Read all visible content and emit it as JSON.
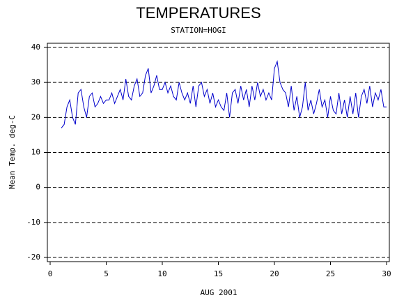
{
  "chart_data": {
    "type": "line",
    "title": "TEMPERATURES",
    "subtitle": "STATION=HOGI",
    "x_label": "AUG 2001",
    "y_label": "Mean Temp. deg-C",
    "x": [
      1,
      1.25,
      1.5,
      1.75,
      2,
      2.25,
      2.5,
      2.75,
      3,
      3.25,
      3.5,
      3.75,
      4,
      4.25,
      4.5,
      4.75,
      5,
      5.25,
      5.5,
      5.75,
      6,
      6.25,
      6.5,
      6.75,
      7,
      7.25,
      7.5,
      7.75,
      8,
      8.25,
      8.5,
      8.75,
      9,
      9.25,
      9.5,
      9.75,
      10,
      10.25,
      10.5,
      10.75,
      11,
      11.25,
      11.5,
      11.75,
      12,
      12.25,
      12.5,
      12.75,
      13,
      13.25,
      13.5,
      13.75,
      14,
      14.25,
      14.5,
      14.75,
      15,
      15.25,
      15.5,
      15.75,
      16,
      16.25,
      16.5,
      16.75,
      17,
      17.25,
      17.5,
      17.75,
      18,
      18.25,
      18.5,
      18.75,
      19,
      19.25,
      19.5,
      19.75,
      20,
      20.25,
      20.5,
      20.75,
      21,
      21.25,
      21.5,
      21.75,
      22,
      22.25,
      22.5,
      22.75,
      23,
      23.25,
      23.5,
      23.75,
      24,
      24.25,
      24.5,
      24.75,
      25,
      25.25,
      25.5,
      25.75,
      26,
      26.25,
      26.5,
      26.75,
      27,
      27.25,
      27.5,
      27.75,
      28,
      28.25,
      28.5,
      28.75,
      29,
      29.25,
      29.5,
      29.75,
      30
    ],
    "series": [
      {
        "color": "#0000cc",
        "values": [
          17,
          18,
          23,
          25,
          20,
          18,
          27,
          28,
          23,
          20,
          26,
          27,
          23,
          24,
          26,
          24,
          25,
          25,
          27,
          24,
          26,
          28,
          25,
          31,
          26,
          25,
          29,
          31,
          26,
          27,
          32,
          34,
          27,
          29,
          32,
          28,
          28,
          30,
          27,
          29,
          26,
          25,
          30,
          27,
          25,
          27,
          24,
          29,
          23,
          29,
          30,
          26,
          28,
          24,
          27,
          23,
          25,
          23,
          22,
          27,
          20,
          27,
          28,
          24,
          29,
          25,
          28,
          23,
          29,
          25,
          30,
          26,
          28,
          25,
          27,
          25,
          34,
          36,
          30,
          28,
          27,
          23,
          29,
          22,
          26,
          20,
          23,
          30,
          22,
          25,
          21,
          24,
          28,
          23,
          25,
          20,
          26,
          22,
          21,
          27,
          21,
          25,
          20,
          26,
          21,
          27,
          20,
          26,
          28,
          24,
          29,
          23,
          27,
          25,
          28,
          23,
          23
        ]
      }
    ],
    "xlim": [
      0,
      30
    ],
    "xticks": [
      0,
      5,
      10,
      15,
      20,
      25,
      30
    ],
    "ylim": [
      -20,
      40
    ],
    "yticks": [
      -20,
      -10,
      0,
      10,
      20,
      30,
      40
    ],
    "grid": true
  }
}
